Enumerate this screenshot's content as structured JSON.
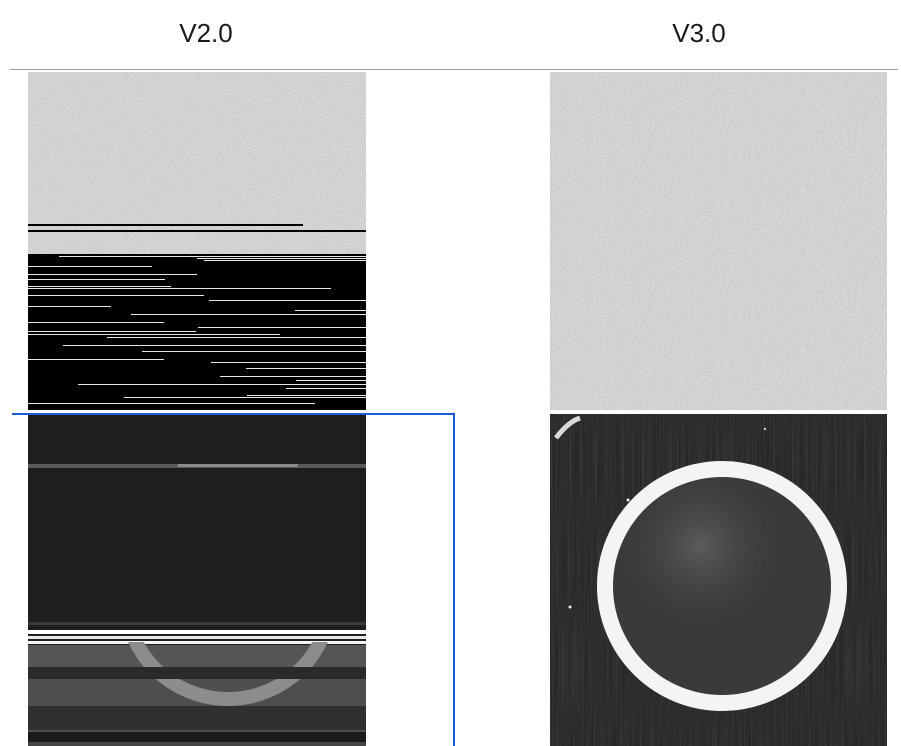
{
  "headings": {
    "left": "V2.0",
    "right": "V3.0"
  },
  "colors": {
    "divider": "#9a9a9a",
    "selection": "#1f5bd6",
    "ring": "#f4f4f4"
  },
  "panels": {
    "top_left": "v2-noise-corrupted",
    "top_right": "v3-noise-clean",
    "bottom_left": "v2-ring-corrupted",
    "bottom_right": "v3-ring-clean"
  }
}
